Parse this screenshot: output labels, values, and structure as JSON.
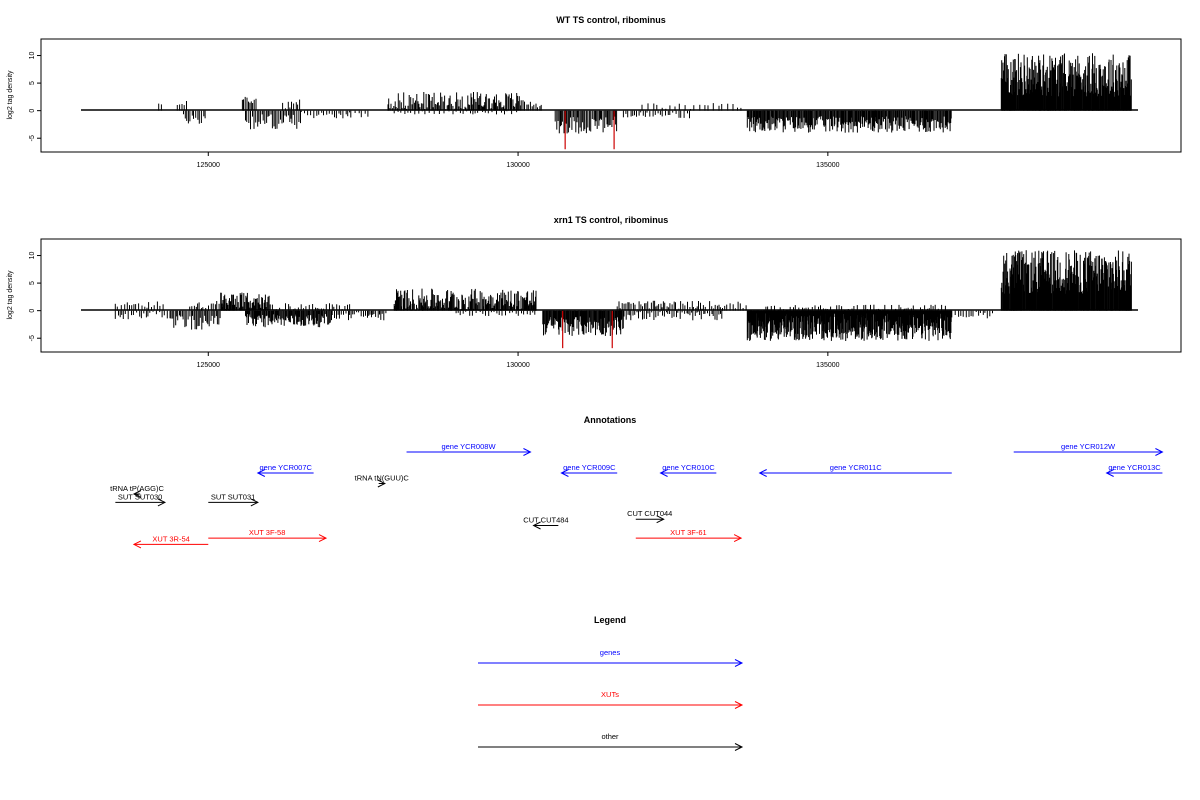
{
  "chart_data": [
    {
      "type": "bar",
      "title": "WT TS control, ribominus",
      "ylabel": "log2 tag density",
      "xlim": [
        122300,
        140700
      ],
      "ylim": [
        -7.5,
        13
      ],
      "xticks": [
        125000,
        130000,
        135000
      ],
      "xtick_labels": [
        "125000",
        "130000",
        "135000"
      ],
      "yticks": [
        -5,
        0,
        5,
        10
      ],
      "ytick_labels": [
        "-5",
        "0",
        "5",
        "10"
      ],
      "grid": false,
      "bar_color": "#000000",
      "marker_color": "#cc0000",
      "red_markers": [
        {
          "x": 130760,
          "y": -7
        },
        {
          "x": 131550,
          "y": -7
        }
      ],
      "segments": [
        {
          "start": 124200,
          "end": 124300,
          "mean": 1.5,
          "amp": 0.5,
          "spacing": 60
        },
        {
          "start": 124500,
          "end": 124650,
          "mean": 1.0,
          "amp": 0.8,
          "spacing": 30
        },
        {
          "start": 124600,
          "end": 124950,
          "mean": -1.5,
          "amp": 1.0,
          "spacing": 30
        },
        {
          "start": 125550,
          "end": 125800,
          "mean": 2.0,
          "amp": 1.0,
          "spacing": 25
        },
        {
          "start": 125600,
          "end": 126500,
          "mean": -2.0,
          "amp": 1.5,
          "spacing": 25
        },
        {
          "start": 126200,
          "end": 126500,
          "mean": 1.2,
          "amp": 0.8,
          "spacing": 35
        },
        {
          "start": 126500,
          "end": 127300,
          "mean": -0.8,
          "amp": 0.6,
          "spacing": 40
        },
        {
          "start": 127300,
          "end": 127600,
          "mean": -0.8,
          "amp": 0.5,
          "spacing": 50
        },
        {
          "start": 127900,
          "end": 130050,
          "mean": 1.8,
          "amp": 1.6,
          "spacing": 18
        },
        {
          "start": 128000,
          "end": 130000,
          "mean": -0.4,
          "amp": 0.3,
          "spacing": 60
        },
        {
          "start": 130050,
          "end": 130400,
          "mean": 1.2,
          "amp": 0.8,
          "spacing": 30
        },
        {
          "start": 130600,
          "end": 131600,
          "mean": -2.6,
          "amp": 1.6,
          "spacing": 20
        },
        {
          "start": 131700,
          "end": 132800,
          "mean": -0.9,
          "amp": 0.7,
          "spacing": 40
        },
        {
          "start": 132000,
          "end": 133600,
          "mean": 0.8,
          "amp": 0.6,
          "spacing": 70
        },
        {
          "start": 133700,
          "end": 137000,
          "mean": -2.5,
          "amp": 1.5,
          "spacing": 14
        },
        {
          "start": 137800,
          "end": 139900,
          "mean": 6.5,
          "amp": 4.0,
          "spacing": 9
        }
      ]
    },
    {
      "type": "bar",
      "title": "xrn1 TS control, ribominus",
      "ylabel": "log2 tag density",
      "xlim": [
        122300,
        140700
      ],
      "ylim": [
        -7.5,
        13
      ],
      "xticks": [
        125000,
        130000,
        135000
      ],
      "xtick_labels": [
        "125000",
        "130000",
        "135000"
      ],
      "yticks": [
        -5,
        0,
        5,
        10
      ],
      "ytick_labels": [
        "-5",
        "0",
        "5",
        "10"
      ],
      "grid": false,
      "bar_color": "#000000",
      "marker_color": "#cc0000",
      "red_markers": [
        {
          "x": 130720,
          "y": -6.8
        },
        {
          "x": 131520,
          "y": -6.8
        }
      ],
      "segments": [
        {
          "start": 123500,
          "end": 124300,
          "mean": 1.0,
          "amp": 1.0,
          "spacing": 40
        },
        {
          "start": 123500,
          "end": 124400,
          "mean": -1.0,
          "amp": 0.8,
          "spacing": 40
        },
        {
          "start": 124400,
          "end": 125200,
          "mean": -2.0,
          "amp": 1.5,
          "spacing": 22
        },
        {
          "start": 124700,
          "end": 125300,
          "mean": 1.0,
          "amp": 0.8,
          "spacing": 35
        },
        {
          "start": 125200,
          "end": 126000,
          "mean": 1.8,
          "amp": 1.6,
          "spacing": 14
        },
        {
          "start": 125600,
          "end": 127000,
          "mean": -1.8,
          "amp": 1.2,
          "spacing": 14
        },
        {
          "start": 126000,
          "end": 127300,
          "mean": 0.8,
          "amp": 0.6,
          "spacing": 40
        },
        {
          "start": 127000,
          "end": 127900,
          "mean": -1.0,
          "amp": 0.8,
          "spacing": 30
        },
        {
          "start": 128000,
          "end": 130300,
          "mean": 2.0,
          "amp": 2.0,
          "spacing": 12
        },
        {
          "start": 129000,
          "end": 130300,
          "mean": -0.6,
          "amp": 0.4,
          "spacing": 50
        },
        {
          "start": 130400,
          "end": 131700,
          "mean": -2.8,
          "amp": 1.8,
          "spacing": 12
        },
        {
          "start": 131600,
          "end": 133300,
          "mean": 1.0,
          "amp": 0.8,
          "spacing": 30
        },
        {
          "start": 131600,
          "end": 133300,
          "mean": -1.0,
          "amp": 0.8,
          "spacing": 30
        },
        {
          "start": 133300,
          "end": 133700,
          "mean": 1.0,
          "amp": 0.7,
          "spacing": 40
        },
        {
          "start": 133700,
          "end": 137000,
          "mean": -3.0,
          "amp": 2.5,
          "spacing": 7
        },
        {
          "start": 134000,
          "end": 137000,
          "mean": 0.6,
          "amp": 0.5,
          "spacing": 45
        },
        {
          "start": 137000,
          "end": 137700,
          "mean": -0.8,
          "amp": 0.6,
          "spacing": 40
        },
        {
          "start": 137800,
          "end": 139900,
          "mean": 7.0,
          "amp": 4.0,
          "spacing": 9
        }
      ]
    },
    {
      "type": "annotation-track",
      "title": "Annotations",
      "xlim": [
        122300,
        140700
      ],
      "features": [
        {
          "label": "gene YCR007C",
          "type": "gene",
          "start": 125800,
          "end": 126700,
          "strand": "-",
          "row": 1
        },
        {
          "label": "gene YCR008W",
          "type": "gene",
          "start": 128200,
          "end": 130200,
          "strand": "+",
          "row": 0
        },
        {
          "label": "gene YCR009C",
          "type": "gene",
          "start": 130700,
          "end": 131600,
          "strand": "-",
          "row": 1
        },
        {
          "label": "gene YCR010C",
          "type": "gene",
          "start": 132300,
          "end": 133200,
          "strand": "-",
          "row": 1
        },
        {
          "label": "gene YCR011C",
          "type": "gene",
          "start": 133900,
          "end": 137000,
          "strand": "-",
          "row": 1
        },
        {
          "label": "gene YCR012W",
          "type": "gene",
          "start": 138000,
          "end": 140400,
          "strand": "+",
          "row": 0
        },
        {
          "label": "gene YCR013C",
          "type": "gene",
          "start": 139500,
          "end": 140400,
          "strand": "-",
          "row": 1
        },
        {
          "label": "tRNA tP(AGG)C",
          "type": "other",
          "start": 123800,
          "end": 123900,
          "strand": "-",
          "row": 2
        },
        {
          "label": "tRNA tN(GUU)C",
          "type": "other",
          "start": 127750,
          "end": 127850,
          "strand": "+",
          "row": 1.5
        },
        {
          "label": "SUT SUT030",
          "type": "other",
          "start": 123500,
          "end": 124300,
          "strand": "+",
          "row": 2.4
        },
        {
          "label": "SUT SUT031",
          "type": "other",
          "start": 125000,
          "end": 125800,
          "strand": "+",
          "row": 2.4
        },
        {
          "label": "CUT CUT484",
          "type": "other",
          "start": 130250,
          "end": 130650,
          "strand": "-",
          "row": 3.5
        },
        {
          "label": "CUT CUT044",
          "type": "other",
          "start": 131900,
          "end": 132350,
          "strand": "+",
          "row": 3.2
        },
        {
          "label": "XUT 3R-54",
          "type": "xut",
          "start": 123800,
          "end": 125000,
          "strand": "-",
          "row": 4.4
        },
        {
          "label": "XUT 3F-58",
          "type": "xut",
          "start": 125000,
          "end": 126900,
          "strand": "+",
          "row": 4.1
        },
        {
          "label": "XUT 3F-61",
          "type": "xut",
          "start": 131900,
          "end": 133600,
          "strand": "+",
          "row": 4.1
        }
      ]
    },
    {
      "type": "legend",
      "title": "Legend",
      "entries": [
        {
          "label": "genes",
          "color": "#0000ff"
        },
        {
          "label": "XUTs",
          "color": "#ff0000"
        },
        {
          "label": "other",
          "color": "#000000"
        }
      ]
    }
  ]
}
